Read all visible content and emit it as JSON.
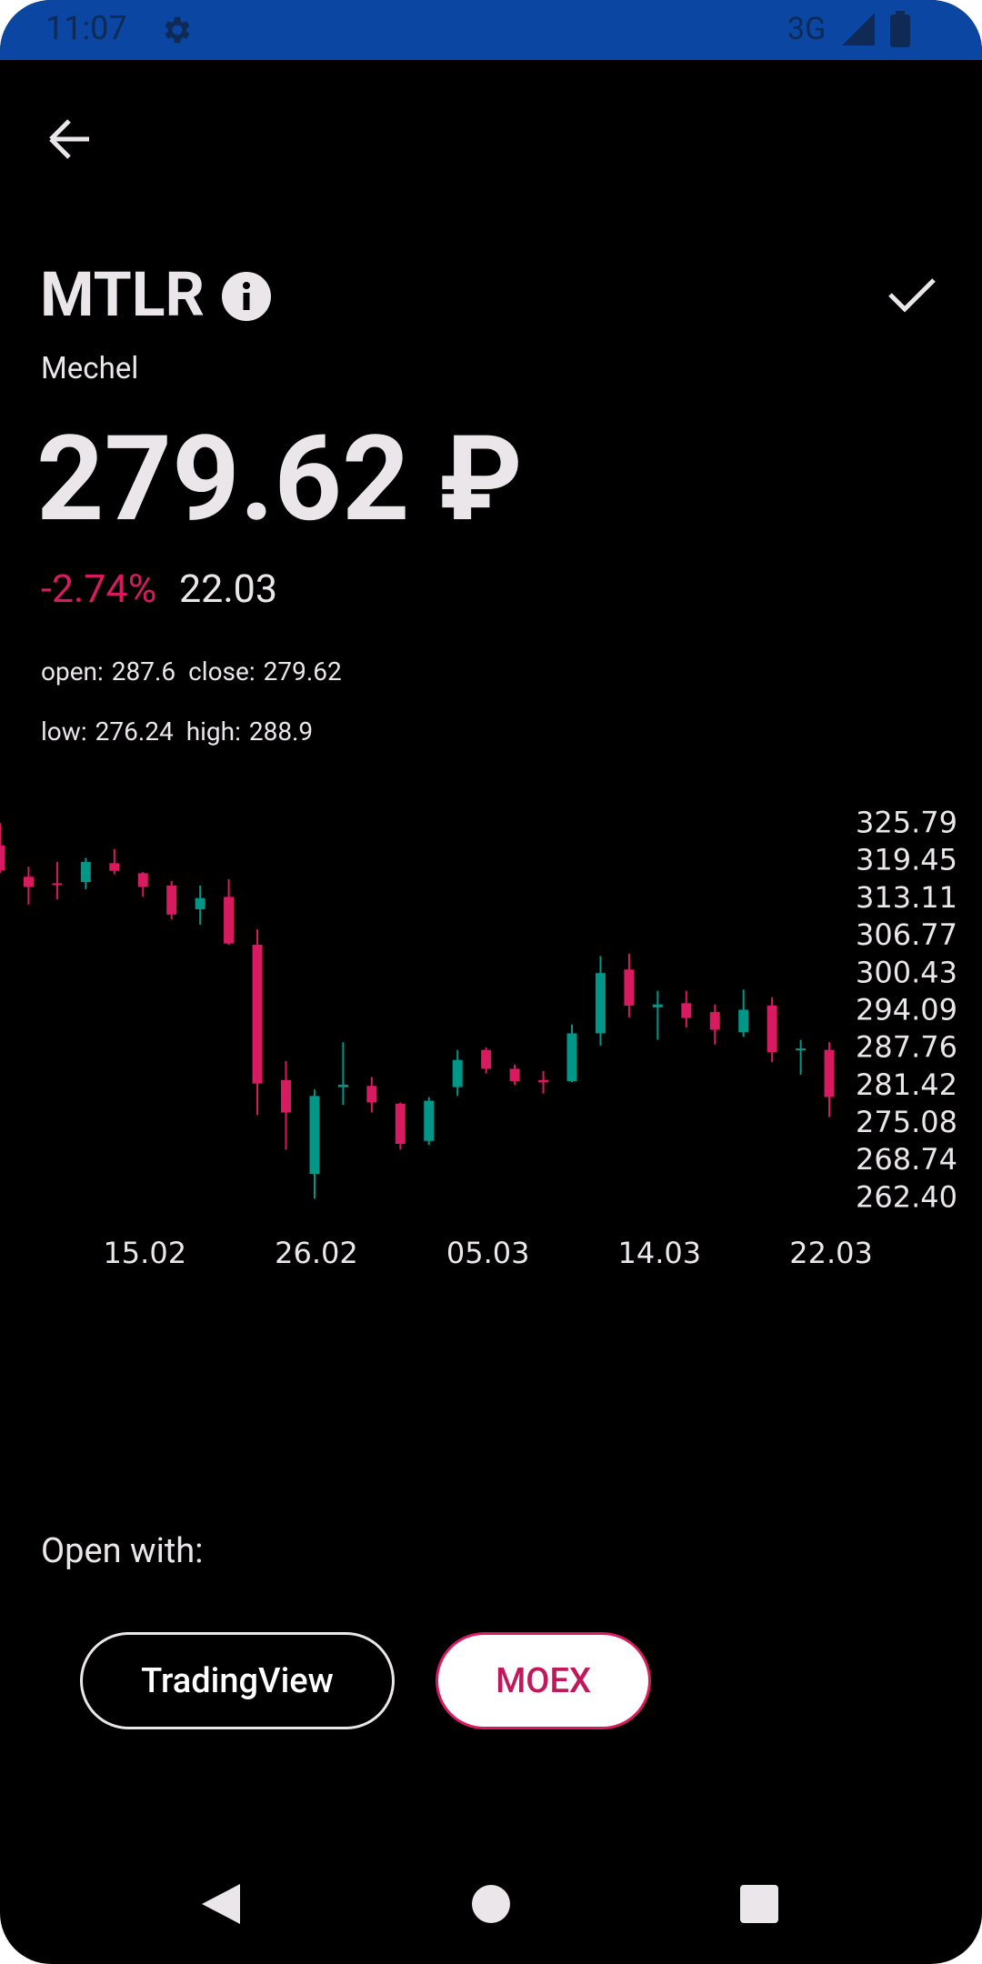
{
  "status_bar": {
    "time": "11:07",
    "network": "3G"
  },
  "header": {
    "ticker": "MTLR",
    "name": "Mechel",
    "price": "279.62 ₽",
    "change": "-2.74%",
    "date": "22.03"
  },
  "stats": [
    [
      {
        "label": "open:",
        "value": 287.6
      },
      {
        "label": "close:",
        "value": 279.62
      }
    ],
    [
      {
        "label": "low:",
        "value": 276.24
      },
      {
        "label": "high:",
        "value": 288.9
      }
    ]
  ],
  "chart_data": {
    "type": "candlestick",
    "categories": [
      null,
      null,
      null,
      null,
      null,
      "15.02",
      null,
      null,
      null,
      null,
      null,
      "26.02",
      null,
      null,
      null,
      null,
      null,
      "05.03",
      null,
      null,
      null,
      null,
      null,
      "14.03",
      null,
      null,
      null,
      null,
      null,
      "22.03"
    ],
    "open": [
      322.2,
      316.9,
      315.8,
      316.0,
      319.2,
      317.5,
      315.4,
      311.4,
      313.5,
      305.4,
      282.5,
      266.6,
      281.3,
      281.5,
      278.5,
      272.2,
      281.3,
      287.6,
      284.4,
      282.5,
      282.3,
      290.4,
      301.2,
      294.8,
      295.5,
      294.0,
      290.6,
      295.1,
      287.6,
      287.6
    ],
    "high": [
      326.0,
      318.6,
      319.4,
      320.1,
      321.6,
      317.7,
      316.2,
      315.4,
      316.5,
      308.0,
      285.7,
      280.9,
      288.9,
      283.0,
      278.7,
      279.6,
      287.6,
      288.0,
      285.1,
      284.0,
      291.9,
      303.5,
      303.9,
      297.6,
      297.6,
      295.3,
      297.8,
      296.5,
      289.3,
      288.9
    ],
    "low": [
      317.5,
      312.2,
      313.1,
      314.8,
      317.3,
      313.5,
      309.7,
      308.8,
      305.4,
      276.6,
      270.7,
      262.4,
      278.3,
      277.0,
      270.7,
      271.5,
      279.8,
      283.6,
      281.7,
      280.2,
      282.1,
      288.3,
      293.1,
      289.3,
      291.4,
      288.5,
      289.8,
      285.5,
      283.4,
      276.24
    ],
    "close": [
      318.0,
      315.2,
      315.6,
      319.4,
      317.9,
      315.2,
      310.5,
      313.3,
      305.6,
      281.9,
      277.0,
      279.8,
      281.7,
      278.7,
      271.7,
      279.0,
      285.9,
      284.4,
      282.3,
      282.1,
      290.4,
      300.6,
      295.1,
      295.3,
      293.0,
      291.0,
      294.4,
      287.2,
      287.85,
      279.62
    ],
    "up_color": "#009688",
    "down_color": "#d81b60",
    "ylim": [
      262.4,
      325.79
    ],
    "yticks": [
      325.79,
      319.45,
      313.11,
      306.77,
      300.43,
      294.09,
      287.76,
      281.42,
      275.08,
      268.74,
      {
        "value": 262.4,
        "label": "262.40"
      }
    ]
  },
  "open_with": {
    "label": "Open with:",
    "buttons": [
      "TradingView",
      "MOEX"
    ]
  }
}
